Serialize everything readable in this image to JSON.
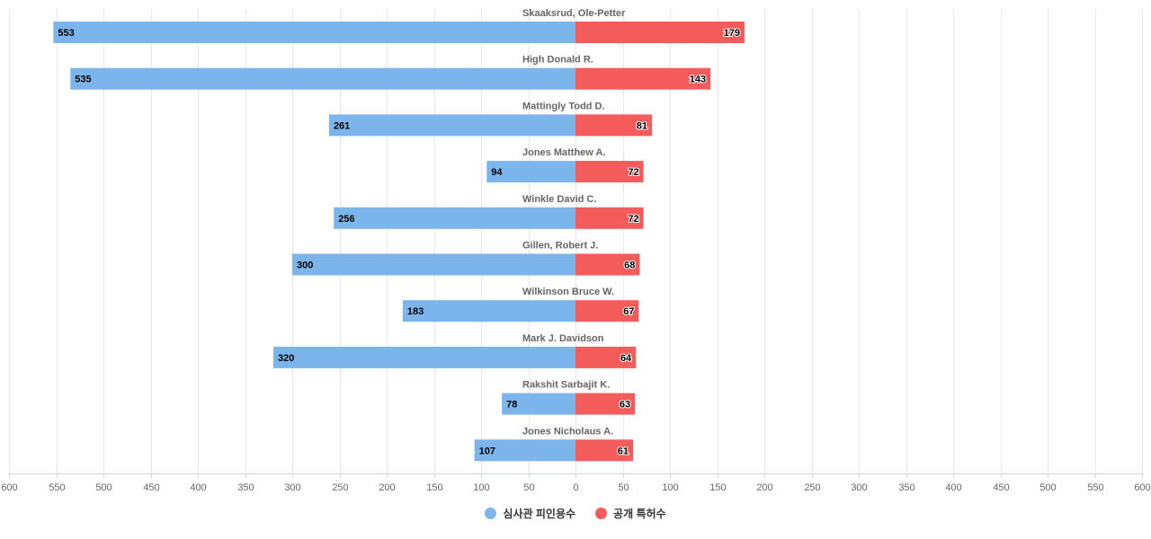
{
  "chart_data": {
    "type": "bar",
    "orientation": "horizontal-diverging",
    "categories": [
      "Skaaksrud, Ole-Petter",
      "High Donald R.",
      "Mattingly Todd D.",
      "Jones Matthew A.",
      "Winkle David C.",
      "Gillen, Robert J.",
      "Wilkinson Bruce W.",
      "Mark J. Davidson",
      "Rakshit Sarbajit K.",
      "Jones Nicholaus A."
    ],
    "series": [
      {
        "name": "심사관 피인용수",
        "color": "#7cb5ec",
        "side": "left",
        "values": [
          553,
          535,
          261,
          94,
          256,
          300,
          183,
          320,
          78,
          107
        ]
      },
      {
        "name": "공개 특허수",
        "color": "#f45b5b",
        "side": "right",
        "values": [
          179,
          143,
          81,
          72,
          72,
          68,
          67,
          64,
          63,
          61
        ]
      }
    ],
    "xlim": [
      -600,
      600
    ],
    "ticks": [
      -600,
      -550,
      -500,
      -450,
      -400,
      -350,
      -300,
      -250,
      -200,
      -150,
      -100,
      -50,
      0,
      50,
      100,
      150,
      200,
      250,
      300,
      350,
      400,
      450,
      500,
      550,
      600
    ],
    "tick_labels": [
      "600",
      "550",
      "500",
      "450",
      "400",
      "350",
      "300",
      "250",
      "200",
      "150",
      "100",
      "50",
      "0",
      "50",
      "100",
      "150",
      "200",
      "250",
      "300",
      "350",
      "400",
      "450",
      "500",
      "550",
      "600"
    ],
    "grid": true,
    "legend_position": "bottom-center"
  },
  "legend": {
    "items": [
      {
        "label": "심사관 피인용수",
        "color": "#7cb5ec"
      },
      {
        "label": "공개 특허수",
        "color": "#f45b5b"
      }
    ]
  }
}
